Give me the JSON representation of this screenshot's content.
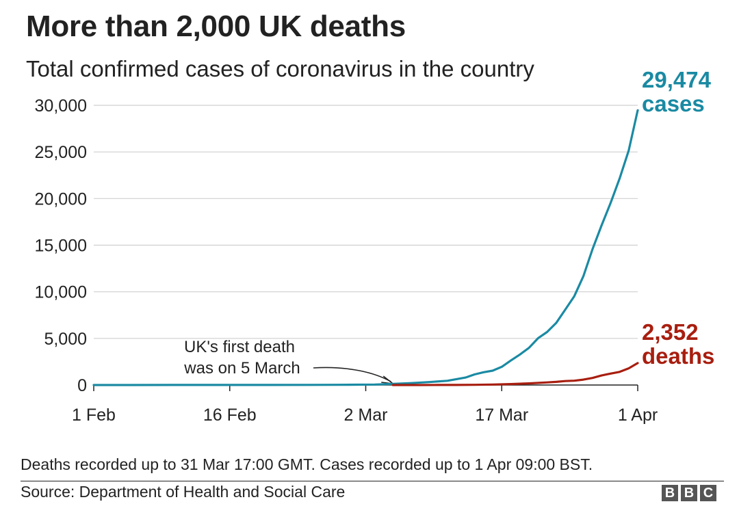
{
  "title": "More than 2,000 UK deaths",
  "subtitle": "Total confirmed cases of coronavirus in the country",
  "note": "Deaths recorded up to 31 Mar 17:00 GMT. Cases recorded up to 1 Apr 09:00 BST.",
  "source": "Source: Department of Health and Social Care",
  "logo": [
    "B",
    "B",
    "C"
  ],
  "colors": {
    "cases": "#1a8aa3",
    "deaths": "#a81e0f",
    "grid": "#cfcfcf",
    "axis": "#222222"
  },
  "chart_data": {
    "type": "line",
    "title": "More than 2,000 UK deaths",
    "subtitle": "Total confirmed cases of coronavirus in the country",
    "xlabel": "",
    "ylabel": "",
    "x_ticks": [
      "1 Feb",
      "16 Feb",
      "2 Mar",
      "17 Mar",
      "1 Apr"
    ],
    "y_ticks": [
      "0",
      "5,000",
      "10,000",
      "15,000",
      "20,000",
      "25,000",
      "30,000"
    ],
    "ylim": [
      0,
      30000
    ],
    "xlim": [
      "2020-02-01",
      "2020-04-01"
    ],
    "grid": true,
    "series": [
      {
        "name": "cases",
        "end_label_value": "29,474",
        "end_label_unit": "cases",
        "points": [
          [
            "2020-02-01",
            2
          ],
          [
            "2020-02-05",
            2
          ],
          [
            "2020-02-10",
            8
          ],
          [
            "2020-02-15",
            9
          ],
          [
            "2020-02-20",
            9
          ],
          [
            "2020-02-25",
            13
          ],
          [
            "2020-02-28",
            20
          ],
          [
            "2020-03-01",
            36
          ],
          [
            "2020-03-03",
            51
          ],
          [
            "2020-03-05",
            115
          ],
          [
            "2020-03-07",
            206
          ],
          [
            "2020-03-09",
            319
          ],
          [
            "2020-03-11",
            456
          ],
          [
            "2020-03-13",
            798
          ],
          [
            "2020-03-14",
            1140
          ],
          [
            "2020-03-15",
            1372
          ],
          [
            "2020-03-16",
            1543
          ],
          [
            "2020-03-17",
            1950
          ],
          [
            "2020-03-18",
            2626
          ],
          [
            "2020-03-19",
            3269
          ],
          [
            "2020-03-20",
            3983
          ],
          [
            "2020-03-21",
            5018
          ],
          [
            "2020-03-22",
            5683
          ],
          [
            "2020-03-23",
            6650
          ],
          [
            "2020-03-24",
            8077
          ],
          [
            "2020-03-25",
            9529
          ],
          [
            "2020-03-26",
            11658
          ],
          [
            "2020-03-27",
            14543
          ],
          [
            "2020-03-28",
            17089
          ],
          [
            "2020-03-29",
            19522
          ],
          [
            "2020-03-30",
            22141
          ],
          [
            "2020-03-31",
            25150
          ],
          [
            "2020-04-01",
            29474
          ]
        ]
      },
      {
        "name": "deaths",
        "end_label_value": "2,352",
        "end_label_unit": "deaths",
        "points": [
          [
            "2020-03-05",
            1
          ],
          [
            "2020-03-08",
            3
          ],
          [
            "2020-03-10",
            6
          ],
          [
            "2020-03-12",
            10
          ],
          [
            "2020-03-14",
            21
          ],
          [
            "2020-03-16",
            55
          ],
          [
            "2020-03-18",
            104
          ],
          [
            "2020-03-20",
            177
          ],
          [
            "2020-03-22",
            281
          ],
          [
            "2020-03-23",
            335
          ],
          [
            "2020-03-24",
            422
          ],
          [
            "2020-03-25",
            465
          ],
          [
            "2020-03-26",
            578
          ],
          [
            "2020-03-27",
            759
          ],
          [
            "2020-03-28",
            1019
          ],
          [
            "2020-03-29",
            1228
          ],
          [
            "2020-03-30",
            1408
          ],
          [
            "2020-03-31",
            1789
          ],
          [
            "2020-04-01",
            2352
          ]
        ]
      }
    ],
    "annotations": [
      {
        "line1": "UK's first death",
        "line2": "was on 5 March",
        "date": "2020-03-05"
      }
    ]
  }
}
